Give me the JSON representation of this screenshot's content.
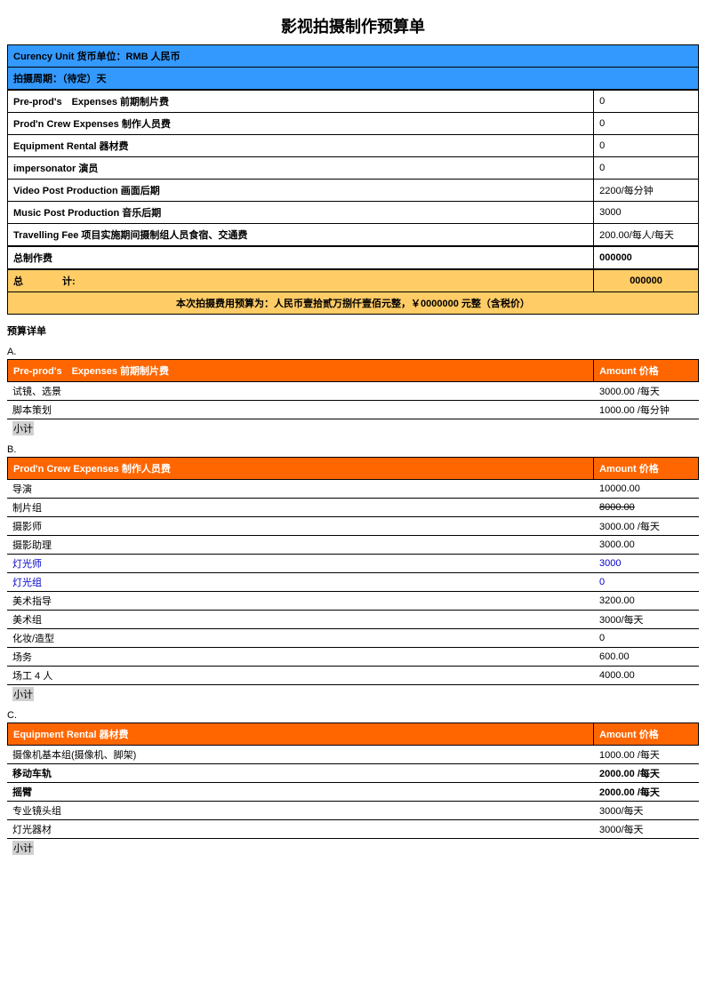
{
  "title": "影视拍摄制作预算单",
  "header_blue": {
    "currency": "Curency Unit 货币单位：RMB 人民币",
    "period": "拍摄周期：（待定）天"
  },
  "summary": [
    {
      "label": "Pre-prod's　Expenses 前期制片费",
      "value": "0"
    },
    {
      "label": "Prod'n Crew Expenses 制作人员费",
      "value": "0"
    },
    {
      "label": "Equipment Rental 器材费",
      "value": "0"
    },
    {
      "label": "impersonator 演员",
      "value": "0"
    },
    {
      "label": "Video Post Production 画面后期",
      "value": "2200/每分钟"
    },
    {
      "label": "Music Post Production 音乐后期",
      "value": "3000"
    },
    {
      "label": "Travelling Fee 项目实施期间摄制组人员食宿、交通费",
      "value": "200.00/每人/每天"
    }
  ],
  "total_production": {
    "label": "总制作费",
    "value": "000000"
  },
  "grand_total": {
    "label": "总　　　　计:",
    "value": "000000"
  },
  "budget_note": "本次拍摄费用预算为：人民币壹拾贰万捌仟壹佰元整，￥0000000 元整（含税价）",
  "detail_title": "预算详单",
  "amount_header": "Amount 价格",
  "subtotal_label": "小计",
  "sections": [
    {
      "key": "A.",
      "header": "Pre-prod's　Expenses 前期制片费",
      "rows": [
        {
          "label": "试镜、选景",
          "value": "3000.00 /每天"
        },
        {
          "label": "脚本策划",
          "value": "1000.00 /每分钟"
        }
      ]
    },
    {
      "key": "B.",
      "header": "Prod'n Crew Expenses 制作人员费",
      "rows": [
        {
          "label": "导演",
          "value": "10000.00"
        },
        {
          "label": "制片组",
          "value": "8000.00",
          "strike": true
        },
        {
          "label": "摄影师",
          "value": "3000.00 /每天"
        },
        {
          "label": "摄影助理",
          "value": "3000.00"
        },
        {
          "label": "灯光师",
          "value": "3000",
          "blue": true
        },
        {
          "label": "灯光组",
          "value": "0",
          "blue": true
        },
        {
          "label": "美术指导",
          "value": "3200.00"
        },
        {
          "label": "美术组",
          "value": "3000/每天"
        },
        {
          "label": "化妆/造型",
          "value": "0"
        },
        {
          "label": "场务",
          "value": "600.00"
        },
        {
          "label": "场工 4 人",
          "value": "4000.00"
        }
      ]
    },
    {
      "key": "C.",
      "header": "Equipment Rental 器材费",
      "rows": [
        {
          "label": "摄像机基本组(摄像机、脚架)",
          "value": "1000.00 /每天"
        },
        {
          "label": "移动车轨",
          "value": "2000.00 /每天",
          "bold": true
        },
        {
          "label": "摇臂",
          "value": "2000.00 /每天",
          "bold": true
        },
        {
          "label": "专业镜头组",
          "value": "3000/每天"
        },
        {
          "label": "灯光器材",
          "value": "3000/每天"
        }
      ]
    }
  ]
}
